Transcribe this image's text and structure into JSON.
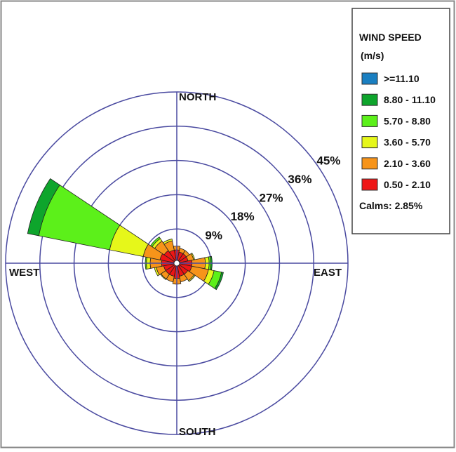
{
  "chart_data": {
    "type": "windrose",
    "directions": [
      0,
      22.5,
      45,
      67.5,
      90,
      112.5,
      135,
      157.5,
      180,
      202.5,
      225,
      247.5,
      270,
      292.5,
      315,
      337.5
    ],
    "direction_labels": {
      "north": "NORTH",
      "east": "EAST",
      "south": "SOUTH",
      "west": "WEST"
    },
    "rlim": [
      0,
      45
    ],
    "rticks": [
      {
        "value": 9,
        "label": "9%"
      },
      {
        "value": 18,
        "label": "18%"
      },
      {
        "value": 27,
        "label": "27%"
      },
      {
        "value": 36,
        "label": "36%"
      },
      {
        "value": 45,
        "label": "45%"
      }
    ],
    "legend_title": "WIND SPEED",
    "legend_unit": "(m/s)",
    "calms": "Calms: 2.85%",
    "series": [
      {
        "name": ">=11.10",
        "color": "#1a7fc1",
        "values": [
          0,
          0,
          0,
          0,
          0,
          0,
          0,
          0,
          0,
          0,
          0,
          0,
          0,
          0,
          0,
          0
        ]
      },
      {
        "name": "8.80 - 11.10",
        "color": "#0ea52c",
        "values": [
          0,
          0,
          0,
          0,
          0.3,
          0.5,
          0,
          0,
          0,
          0,
          0,
          0,
          0,
          3,
          0,
          0
        ]
      },
      {
        "name": "5.70 - 8.80",
        "color": "#5cf01a",
        "values": [
          0,
          0,
          0,
          0,
          0.5,
          2,
          0,
          0,
          0,
          0,
          0,
          0,
          0.3,
          19,
          0.5,
          0
        ]
      },
      {
        "name": "3.60 - 5.70",
        "color": "#e6f71a",
        "values": [
          0,
          0,
          0,
          0.3,
          1,
          1.5,
          0.3,
          0,
          0,
          0,
          0.2,
          0.5,
          1,
          9,
          0.8,
          0.5
        ]
      },
      {
        "name": "2.10 - 3.60",
        "color": "#f7941a",
        "values": [
          1,
          1,
          1,
          1.5,
          3.5,
          4.5,
          2,
          1.5,
          1.5,
          1.5,
          1.5,
          2,
          3,
          4.5,
          3,
          2.5
        ]
      },
      {
        "name": "0.50 - 2.10",
        "color": "#ee1515",
        "values": [
          3.5,
          3,
          3,
          3,
          4,
          4,
          3.5,
          3.5,
          4,
          3.5,
          3.5,
          3.5,
          4,
          4.5,
          4,
          3.5
        ]
      }
    ]
  }
}
